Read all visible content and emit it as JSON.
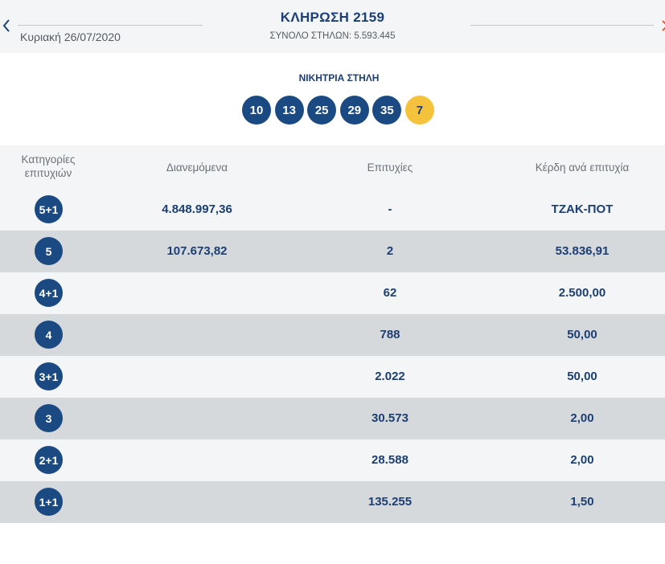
{
  "header": {
    "date": "Κυριακή 26/07/2020",
    "draw_title": "ΚΛΗΡΩΣΗ 2159",
    "total_columns": "ΣΥΝΟΛΟ ΣΤΗΛΩΝ: 5.593.445"
  },
  "winning": {
    "label": "ΝΙΚΗΤΡΙΑ ΣΤΗΛΗ",
    "numbers": [
      "10",
      "13",
      "25",
      "29",
      "35"
    ],
    "joker": "7"
  },
  "table": {
    "headers": {
      "category": "Κατηγορίες επιτυχιών",
      "distributed": "Διανεμόμενα",
      "winners": "Επιτυχίες",
      "prize": "Κέρδη ανά επιτυχία"
    },
    "rows": [
      {
        "category": "5+1",
        "distributed": "4.848.997,36",
        "winners": "-",
        "prize": "ΤΖΑΚ-ΠΟΤ"
      },
      {
        "category": "5",
        "distributed": "107.673,82",
        "winners": "2",
        "prize": "53.836,91"
      },
      {
        "category": "4+1",
        "distributed": "",
        "winners": "62",
        "prize": "2.500,00"
      },
      {
        "category": "4",
        "distributed": "",
        "winners": "788",
        "prize": "50,00"
      },
      {
        "category": "3+1",
        "distributed": "",
        "winners": "2.022",
        "prize": "50,00"
      },
      {
        "category": "3",
        "distributed": "",
        "winners": "30.573",
        "prize": "2,00"
      },
      {
        "category": "2+1",
        "distributed": "",
        "winners": "28.588",
        "prize": "2,00"
      },
      {
        "category": "1+1",
        "distributed": "",
        "winners": "135.255",
        "prize": "1,50"
      }
    ]
  },
  "colors": {
    "navy": "#1b4a83",
    "joker_yellow": "#f5c33b",
    "row_light": "#f4f5f6",
    "row_dark": "#d6d9dc"
  }
}
